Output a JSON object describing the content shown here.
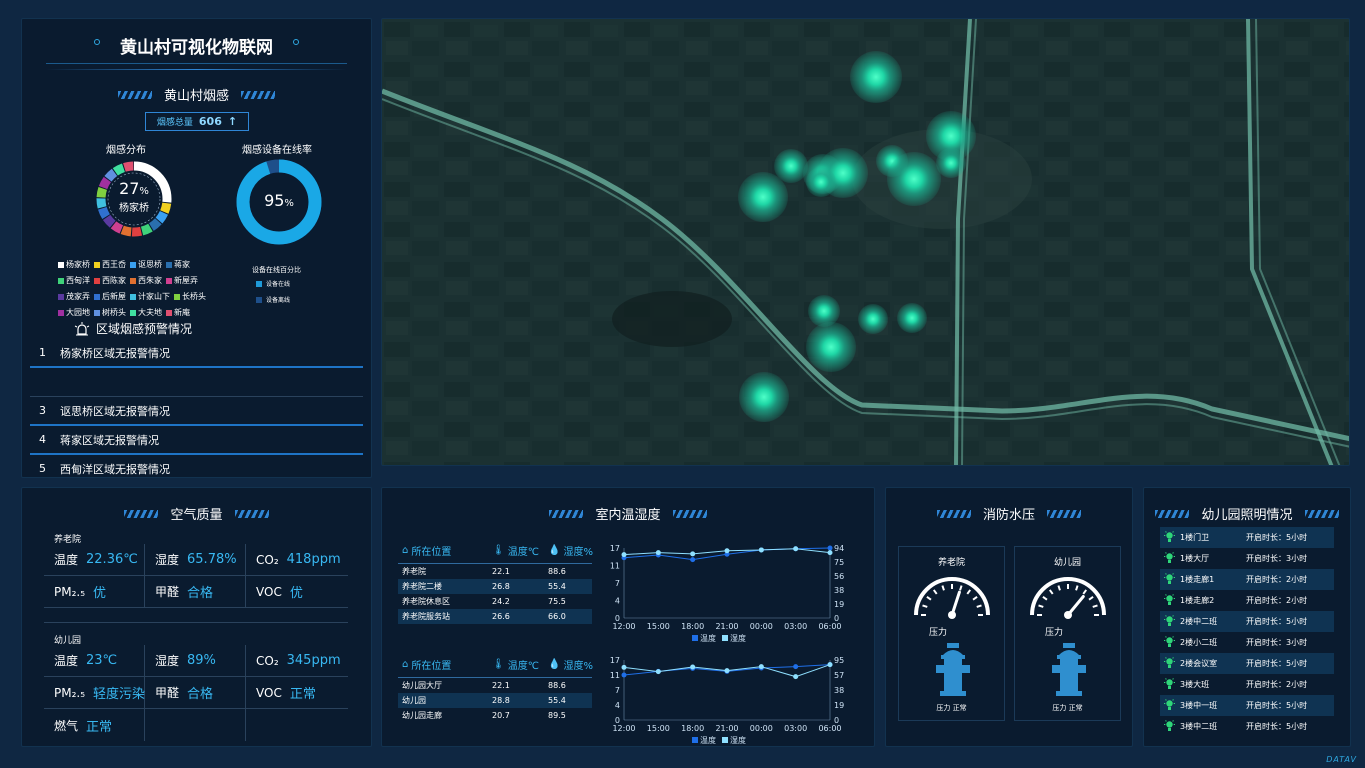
{
  "app_title": "黄山村可视化物联网",
  "smoke": {
    "title": "黄山村烟感",
    "total_label": "烟感总量",
    "total_value": "606",
    "total_arrow": "↑",
    "dist_title": "烟感分布",
    "dist_center_value": "27",
    "dist_center_unit": "%",
    "dist_center_label": "杨家桥",
    "online_title": "烟感设备在线率",
    "online_value": "95",
    "online_unit": "%",
    "online_legend_title": "设备在线百分比",
    "online_legend": [
      {
        "label": "设备在线",
        "color": "#1f9ad8"
      },
      {
        "label": "设备离线",
        "color": "#1e4f8a"
      }
    ],
    "dist_legend": [
      {
        "label": "杨家桥",
        "color": "#ffffff"
      },
      {
        "label": "西王岙",
        "color": "#f0d020"
      },
      {
        "label": "讴思桥",
        "color": "#3aa0f0"
      },
      {
        "label": "蒋家",
        "color": "#2a6fae"
      },
      {
        "label": "西甸洋",
        "color": "#3fd27a"
      },
      {
        "label": "西陈家",
        "color": "#e04040"
      },
      {
        "label": "西朱家",
        "color": "#e07030"
      },
      {
        "label": "新屋弄",
        "color": "#d04090"
      },
      {
        "label": "茂家弄",
        "color": "#5a3aa0"
      },
      {
        "label": "后新屋",
        "color": "#3070d0"
      },
      {
        "label": "计家山下",
        "color": "#40c0e0"
      },
      {
        "label": "长桥头",
        "color": "#80d040"
      },
      {
        "label": "大园地",
        "color": "#a030a0"
      },
      {
        "label": "树桥头",
        "color": "#6090e0"
      },
      {
        "label": "大夫地",
        "color": "#40e0a0"
      },
      {
        "label": "新庵",
        "color": "#e05070"
      }
    ]
  },
  "alarm": {
    "title": "区域烟感预警情况",
    "rows": [
      {
        "n": "1",
        "text": "杨家桥区域无报警情况"
      },
      {
        "n": "3",
        "text": "讴思桥区域无报警情况"
      },
      {
        "n": "4",
        "text": "蒋家区域无报警情况"
      },
      {
        "n": "5",
        "text": "西甸洋区域无报警情况"
      }
    ]
  },
  "air": {
    "title": "空气质量",
    "sections": [
      {
        "name": "养老院",
        "cells": [
          {
            "k": "温度",
            "v": "22.36℃"
          },
          {
            "k": "湿度",
            "v": "65.78%"
          },
          {
            "k": "CO₂",
            "v": "418ppm"
          },
          {
            "k": "PM₂.₅",
            "v": "优"
          },
          {
            "k": "甲醛",
            "v": "合格"
          },
          {
            "k": "VOC",
            "v": "优"
          }
        ]
      },
      {
        "name": "幼儿园",
        "cells": [
          {
            "k": "温度",
            "v": "23℃"
          },
          {
            "k": "湿度",
            "v": "89%"
          },
          {
            "k": "CO₂",
            "v": "345ppm"
          },
          {
            "k": "PM₂.₅",
            "v": "轻度污染"
          },
          {
            "k": "甲醛",
            "v": "合格"
          },
          {
            "k": "VOC",
            "v": "正常"
          },
          {
            "k": "燃气",
            "v": "正常"
          },
          {
            "k": "",
            "v": ""
          },
          {
            "k": "",
            "v": ""
          }
        ]
      }
    ]
  },
  "indoor": {
    "title": "室内温湿度",
    "col_location": "所在位置",
    "col_temp": "温度℃",
    "col_hum": "湿度%",
    "table1": [
      [
        "养老院",
        "22.1",
        "88.6"
      ],
      [
        "养老院二楼",
        "26.8",
        "55.4"
      ],
      [
        "养老院休息区",
        "24.2",
        "75.5"
      ],
      [
        "养老院服务站",
        "26.6",
        "66.0"
      ]
    ],
    "table2": [
      [
        "幼儿园大厅",
        "22.1",
        "88.6"
      ],
      [
        "幼儿园",
        "28.8",
        "55.4"
      ],
      [
        "幼儿园走廊",
        "20.7",
        "89.5"
      ]
    ],
    "legend_temp": "温度",
    "legend_hum": "湿度"
  },
  "chart_data": [
    {
      "type": "line",
      "categories": [
        "12:00",
        "15:00",
        "18:00",
        "21:00",
        "00:00",
        "03:00",
        "06:00"
      ],
      "y_left_ticks": [
        "17",
        "11",
        "7",
        "4",
        "0"
      ],
      "y_right_ticks": [
        "94",
        "75",
        "56",
        "38",
        "19",
        "0"
      ],
      "series": [
        {
          "name": "温度",
          "color": "#1f6fe8",
          "values": [
            15.5,
            16.2,
            15.0,
            16.4,
            17.5,
            17.8,
            18.0
          ]
        },
        {
          "name": "湿度",
          "color": "#8fe0ff",
          "values": [
            16.3,
            16.8,
            16.5,
            17.3,
            17.5,
            17.8,
            16.8
          ]
        }
      ]
    },
    {
      "type": "line",
      "categories": [
        "12:00",
        "15:00",
        "18:00",
        "21:00",
        "00:00",
        "03:00",
        "06:00"
      ],
      "y_left_ticks": [
        "17",
        "11",
        "7",
        "4",
        "0"
      ],
      "y_right_ticks": [
        "95",
        "57",
        "38",
        "19",
        "0"
      ],
      "series": [
        {
          "name": "温度",
          "color": "#1f6fe8",
          "values": [
            13.5,
            14.6,
            15.5,
            14.6,
            15.6,
            16.0,
            16.6
          ]
        },
        {
          "name": "湿度",
          "color": "#8fe0ff",
          "values": [
            15.8,
            14.5,
            15.9,
            14.8,
            16.0,
            13.0,
            16.6
          ]
        }
      ]
    }
  ],
  "fire": {
    "title": "消防水压",
    "gauges": [
      {
        "name": "养老院",
        "pressure_label": "压力",
        "status": "压力 正常",
        "level": 0.6
      },
      {
        "name": "幼儿园",
        "pressure_label": "压力",
        "status": "压力 正常",
        "level": 0.72
      }
    ]
  },
  "lighting": {
    "title": "幼儿园照明情况",
    "rows": [
      {
        "name": "1楼门卫",
        "dur": "开启时长：5小时"
      },
      {
        "name": "1楼大厅",
        "dur": "开启时长：3小时"
      },
      {
        "name": "1楼走廊1",
        "dur": "开启时长：2小时"
      },
      {
        "name": "1楼走廊2",
        "dur": "开启时长：2小时"
      },
      {
        "name": "2楼中二班",
        "dur": "开启时长：5小时"
      },
      {
        "name": "2楼小二班",
        "dur": "开启时长：3小时"
      },
      {
        "name": "2楼会议室",
        "dur": "开启时长：5小时"
      },
      {
        "name": "3楼大班",
        "dur": "开启时长：2小时"
      },
      {
        "name": "3楼中一班",
        "dur": "开启时长：5小时"
      },
      {
        "name": "3楼中二班",
        "dur": "开启时长：5小时"
      }
    ]
  },
  "footer_logo": "DATAV"
}
